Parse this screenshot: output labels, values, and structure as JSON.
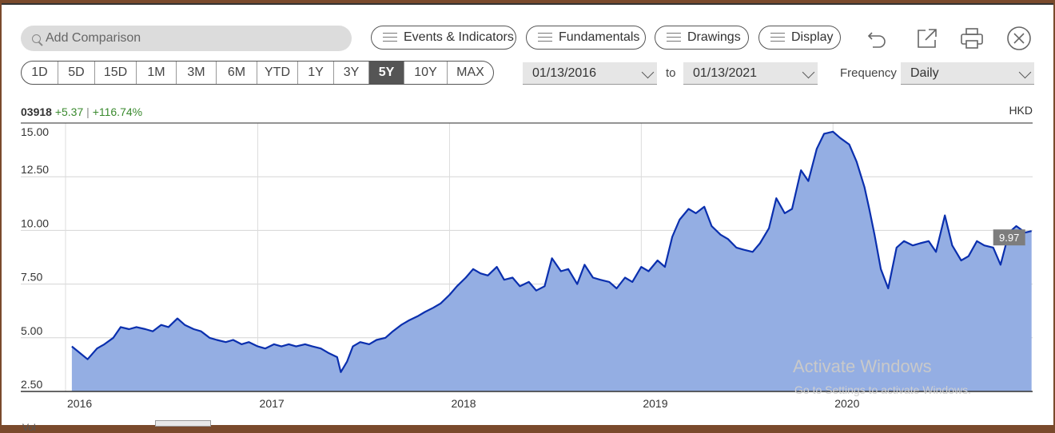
{
  "toolbar": {
    "search_placeholder": "Add Comparison",
    "events_label": "Events & Indicators",
    "fundamentals_label": "Fundamentals",
    "drawings_label": "Drawings",
    "display_label": "Display",
    "icons": [
      "undo-icon",
      "popout-icon",
      "print-icon",
      "close-icon"
    ]
  },
  "ranges": [
    "1D",
    "5D",
    "15D",
    "1M",
    "3M",
    "6M",
    "YTD",
    "1Y",
    "3Y",
    "5Y",
    "10Y",
    "MAX"
  ],
  "active_range": "5Y",
  "dates": {
    "from": "01/13/2016",
    "to_label": "to",
    "to": "01/13/2021"
  },
  "frequency": {
    "label": "Frequency",
    "value": "Daily"
  },
  "header": {
    "symbol": "03918",
    "change": "+5.37",
    "separator": "|",
    "change_pct": "+116.74%",
    "currency": "HKD"
  },
  "watermark": {
    "line1": "Activate Windows",
    "line2": "Go to Settings to activate Windows."
  },
  "volume_label": "Vol",
  "colors": {
    "line": "#0a2fae",
    "area": "#94aee3",
    "positive": "#3a8a2e",
    "active_range": "#555555"
  },
  "chart_data": {
    "type": "area",
    "title": "",
    "xlabel": "",
    "ylabel": "",
    "ylim": [
      2.5,
      15.0
    ],
    "y_ticks": [
      "2.50",
      "5.00",
      "7.50",
      "10.00",
      "12.50",
      "15.00"
    ],
    "x_ticks": [
      "2016",
      "2017",
      "2018",
      "2019",
      "2020"
    ],
    "last_value_label": "9.97",
    "grid": true,
    "series": [
      {
        "x": [
          "2016-01-13",
          "2016-01-28",
          "2016-02-12",
          "2016-03-01",
          "2016-03-15",
          "2016-04-01",
          "2016-04-15",
          "2016-05-01",
          "2016-05-15",
          "2016-06-01",
          "2016-06-15",
          "2016-07-01",
          "2016-07-15",
          "2016-08-01",
          "2016-08-15",
          "2016-09-01",
          "2016-09-15",
          "2016-10-01",
          "2016-10-15",
          "2016-11-01",
          "2016-11-15",
          "2016-12-01",
          "2016-12-15",
          "2017-01-01",
          "2017-01-15",
          "2017-02-01",
          "2017-02-15",
          "2017-03-01",
          "2017-03-15",
          "2017-04-01",
          "2017-04-15",
          "2017-05-01",
          "2017-05-15",
          "2017-06-01",
          "2017-06-08",
          "2017-06-20",
          "2017-07-01",
          "2017-07-15",
          "2017-08-01",
          "2017-08-15",
          "2017-09-01",
          "2017-09-15",
          "2017-10-01",
          "2017-10-15",
          "2017-11-01",
          "2017-11-15",
          "2017-12-01",
          "2017-12-15",
          "2018-01-01",
          "2018-01-15",
          "2018-02-01",
          "2018-02-15",
          "2018-03-01",
          "2018-03-15",
          "2018-04-01",
          "2018-04-15",
          "2018-05-01",
          "2018-05-15",
          "2018-06-01",
          "2018-06-15",
          "2018-07-01",
          "2018-07-15",
          "2018-08-01",
          "2018-08-15",
          "2018-09-01",
          "2018-09-15",
          "2018-10-01",
          "2018-10-15",
          "2018-11-01",
          "2018-11-15",
          "2018-12-01",
          "2018-12-15",
          "2019-01-01",
          "2019-01-15",
          "2019-02-01",
          "2019-02-15",
          "2019-03-01",
          "2019-03-15",
          "2019-04-01",
          "2019-04-15",
          "2019-05-01",
          "2019-05-15",
          "2019-06-01",
          "2019-06-15",
          "2019-07-01",
          "2019-07-15",
          "2019-08-01",
          "2019-08-15",
          "2019-09-01",
          "2019-09-15",
          "2019-10-01",
          "2019-10-15",
          "2019-11-01",
          "2019-11-15",
          "2019-12-01",
          "2019-12-15",
          "2020-01-01",
          "2020-01-15",
          "2020-02-01",
          "2020-02-15",
          "2020-03-01",
          "2020-03-10",
          "2020-03-20",
          "2020-04-01",
          "2020-04-15",
          "2020-05-01",
          "2020-05-15",
          "2020-06-01",
          "2020-06-15",
          "2020-07-01",
          "2020-07-15",
          "2020-08-01",
          "2020-08-15",
          "2020-09-01",
          "2020-09-15",
          "2020-10-01",
          "2020-10-15",
          "2020-11-01",
          "2020-11-15",
          "2020-12-01",
          "2020-12-15",
          "2021-01-01",
          "2021-01-13"
        ],
        "values": [
          4.6,
          4.3,
          4.0,
          4.5,
          4.7,
          5.0,
          5.5,
          5.4,
          5.5,
          5.4,
          5.3,
          5.6,
          5.5,
          5.9,
          5.6,
          5.4,
          5.3,
          5.0,
          4.9,
          4.8,
          4.9,
          4.7,
          4.8,
          4.6,
          4.5,
          4.7,
          4.6,
          4.7,
          4.6,
          4.7,
          4.6,
          4.5,
          4.3,
          4.1,
          3.4,
          3.9,
          4.6,
          4.8,
          4.7,
          4.9,
          5.0,
          5.3,
          5.6,
          5.8,
          6.0,
          6.2,
          6.4,
          6.6,
          7.0,
          7.4,
          7.8,
          8.2,
          8.0,
          7.9,
          8.3,
          7.7,
          7.8,
          7.4,
          7.6,
          7.2,
          7.4,
          8.7,
          8.1,
          8.2,
          7.5,
          8.4,
          7.8,
          7.7,
          7.6,
          7.3,
          7.8,
          7.6,
          8.3,
          8.1,
          8.6,
          8.3,
          9.7,
          10.5,
          11.0,
          10.8,
          11.1,
          10.2,
          9.8,
          9.6,
          9.2,
          9.1,
          9.0,
          9.4,
          10.1,
          11.5,
          10.8,
          11.0,
          12.8,
          12.3,
          13.8,
          14.5,
          14.6,
          14.3,
          14.0,
          13.2,
          12.0,
          11.0,
          9.8,
          8.2,
          7.3,
          9.2,
          9.5,
          9.3,
          9.4,
          9.5,
          9.0,
          10.7,
          9.3,
          8.6,
          8.8,
          9.5,
          9.3,
          9.2,
          8.4,
          9.9,
          10.2,
          9.9,
          9.97
        ]
      }
    ]
  }
}
